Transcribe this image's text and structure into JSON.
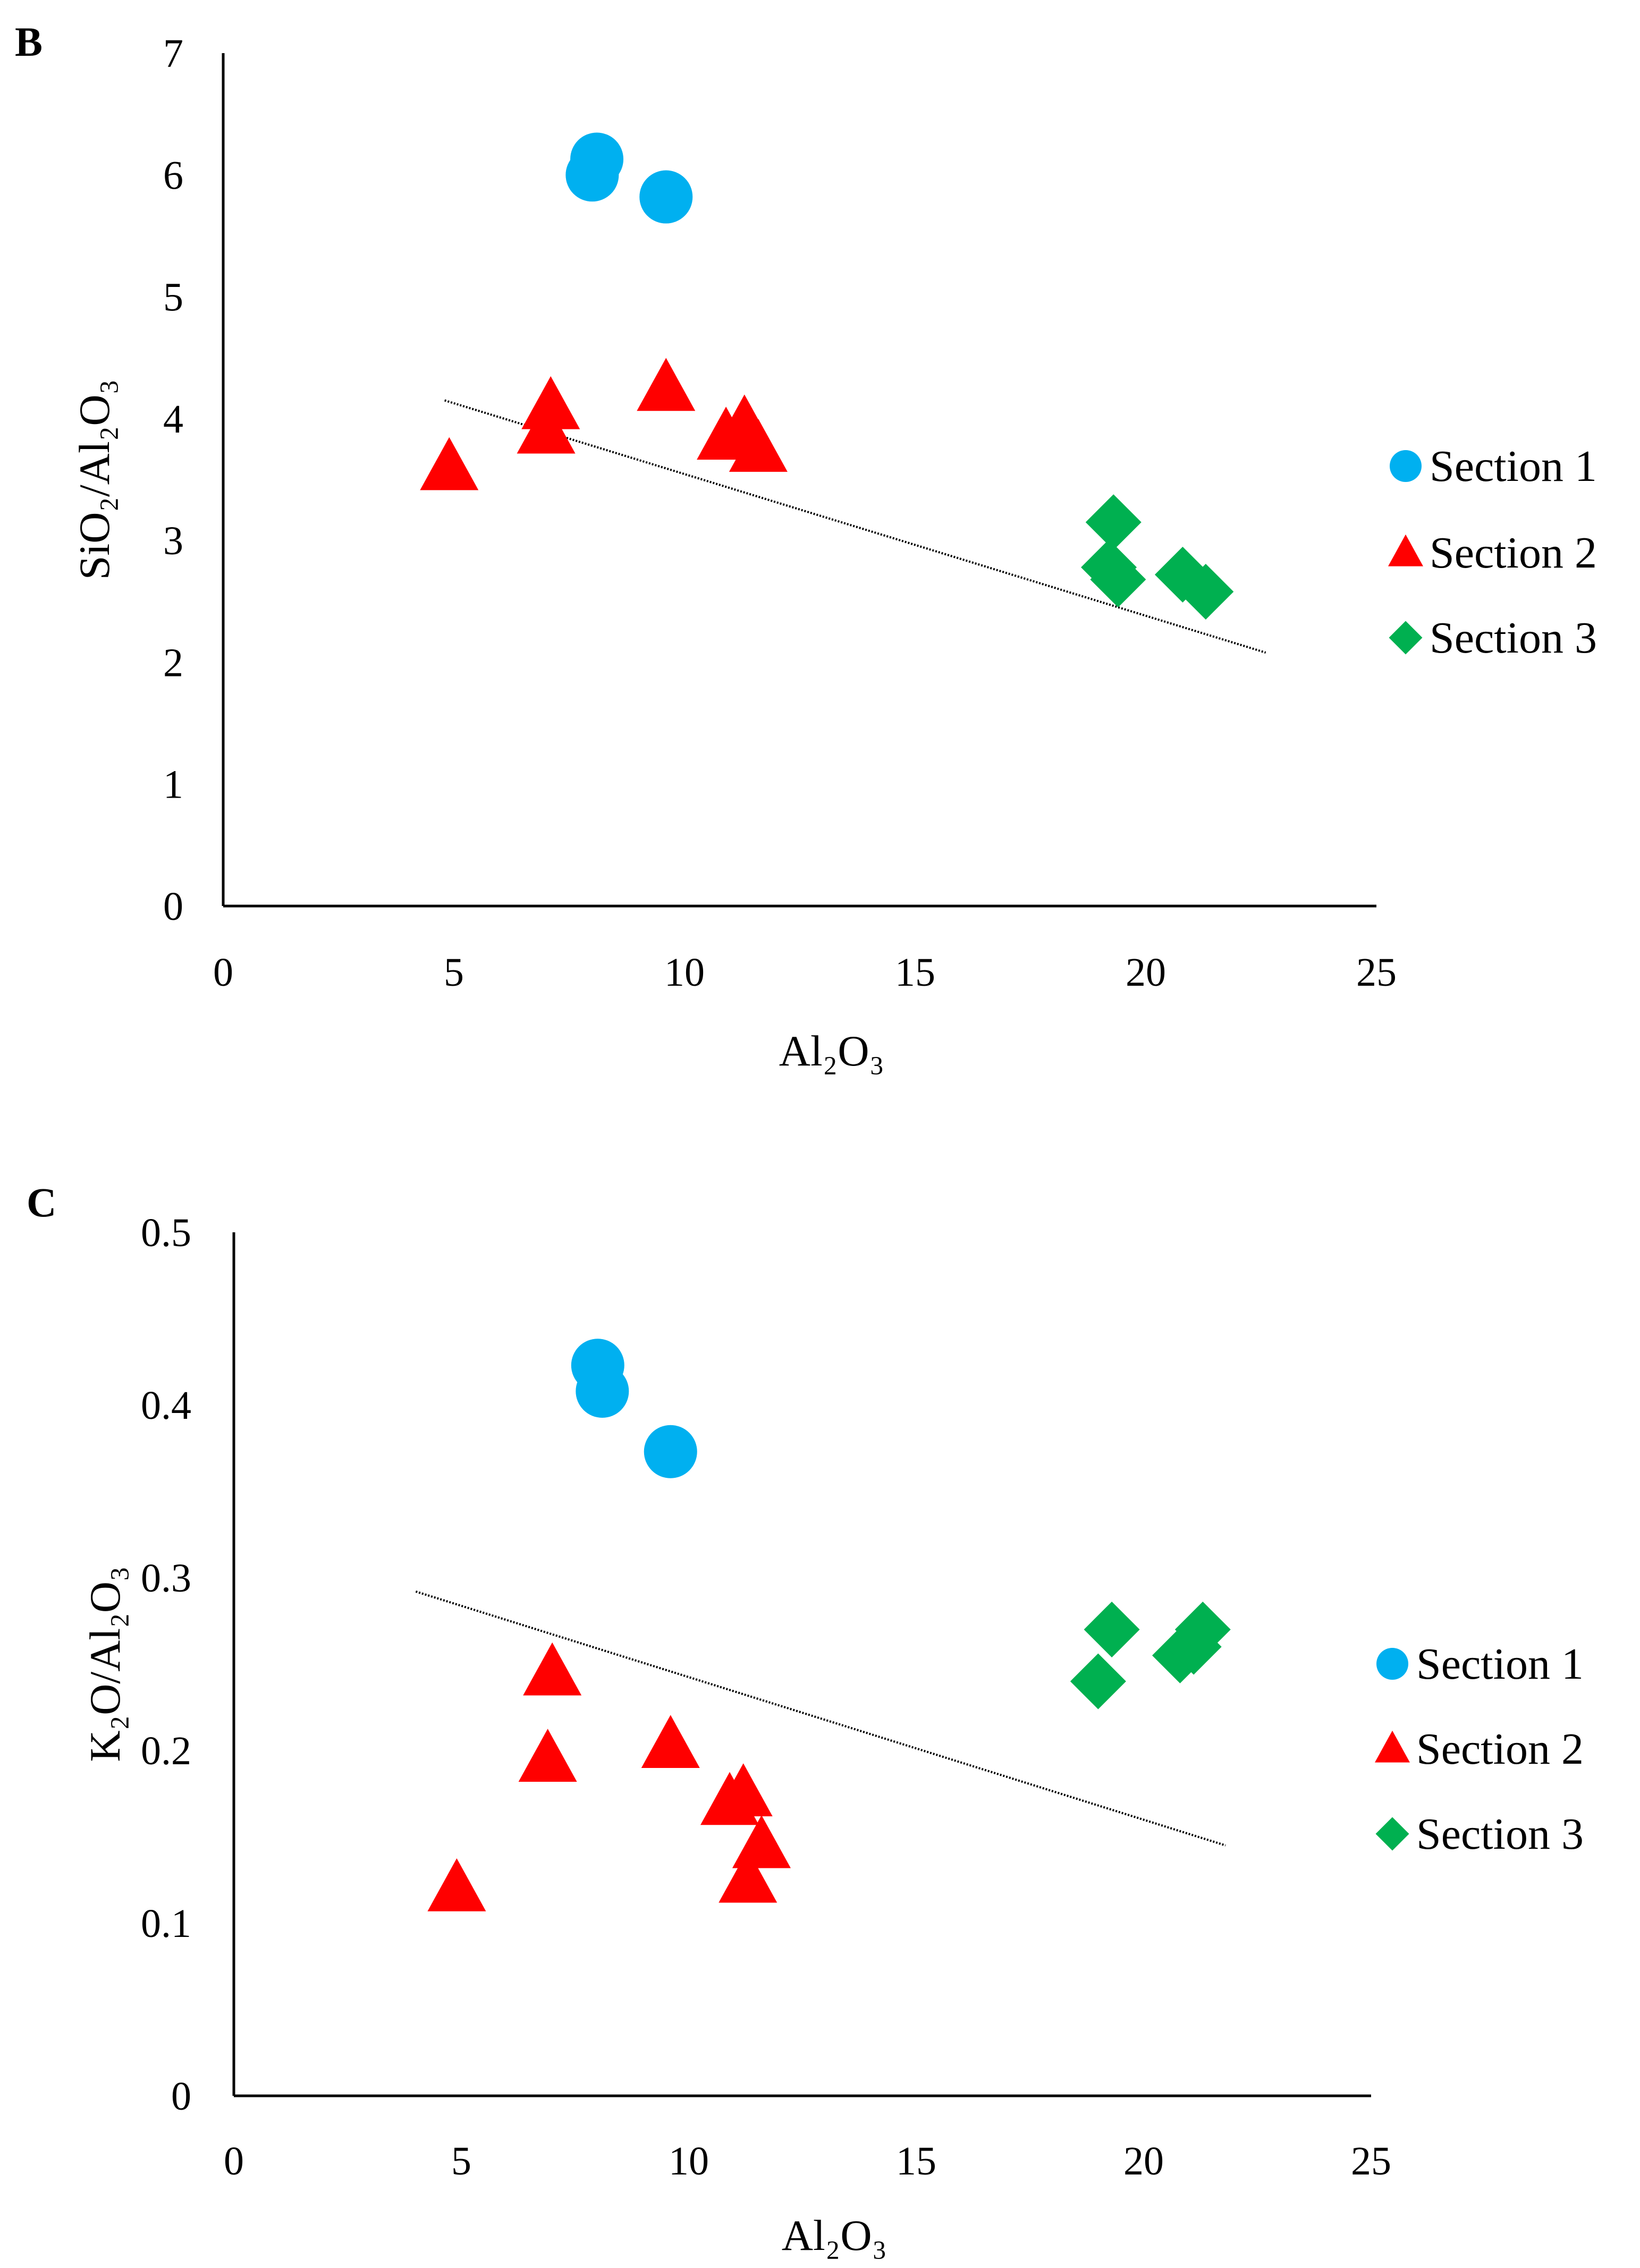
{
  "colors": {
    "section1": "#00b0f0",
    "section2": "#ff0000",
    "section3": "#00b050",
    "axis": "#000000",
    "trendline": "#000000"
  },
  "chart_data": [
    {
      "panel": "B",
      "type": "scatter",
      "xlabel": "Al₂O₃",
      "ylabel": "SiO₂/Al₂O₃",
      "xlim": [
        0,
        25
      ],
      "ylim": [
        0,
        7
      ],
      "xticks": [
        0,
        5,
        10,
        15,
        20,
        25
      ],
      "yticks": [
        0,
        1,
        2,
        3,
        4,
        5,
        6,
        7
      ],
      "grid": false,
      "legend_position": "right",
      "series": [
        {
          "name": "Section 1",
          "marker": "circle",
          "color": "#00b0f0",
          "points": [
            [
              8.0,
              6.0
            ],
            [
              8.1,
              6.13
            ],
            [
              9.6,
              5.82
            ]
          ]
        },
        {
          "name": "Section 2",
          "marker": "triangle",
          "color": "#ff0000",
          "points": [
            [
              4.9,
              3.6
            ],
            [
              7.0,
              3.9
            ],
            [
              7.1,
              4.1
            ],
            [
              9.6,
              4.25
            ],
            [
              10.9,
              3.85
            ],
            [
              11.3,
              3.95
            ],
            [
              11.6,
              3.75
            ]
          ]
        },
        {
          "name": "Section 3",
          "marker": "diamond",
          "color": "#00b050",
          "points": [
            [
              19.3,
              3.15
            ],
            [
              19.2,
              2.78
            ],
            [
              19.4,
              2.68
            ],
            [
              20.8,
              2.72
            ],
            [
              21.3,
              2.58
            ]
          ]
        }
      ],
      "trendline": {
        "x": [
          4.8,
          22.6
        ],
        "y": [
          4.15,
          2.08
        ],
        "style": "dotted"
      }
    },
    {
      "panel": "C",
      "type": "scatter",
      "xlabel": "Al₂O₃",
      "ylabel": "K₂O/Al₂O₃",
      "xlim": [
        0,
        25
      ],
      "ylim": [
        0,
        0.5
      ],
      "xticks": [
        0,
        5,
        10,
        15,
        20,
        25
      ],
      "yticks": [
        0,
        0.1,
        0.2,
        0.3,
        0.4,
        0.5
      ],
      "grid": false,
      "legend_position": "right",
      "series": [
        {
          "name": "Section 1",
          "marker": "circle",
          "color": "#00b0f0",
          "points": [
            [
              8.0,
              0.423
            ],
            [
              8.1,
              0.408
            ],
            [
              9.6,
              0.373
            ]
          ]
        },
        {
          "name": "Section 2",
          "marker": "triangle",
          "color": "#ff0000",
          "points": [
            [
              4.9,
              0.12
            ],
            [
              6.9,
              0.195
            ],
            [
              7.0,
              0.245
            ],
            [
              9.6,
              0.203
            ],
            [
              10.9,
              0.17
            ],
            [
              11.2,
              0.175
            ],
            [
              11.3,
              0.125
            ],
            [
              11.6,
              0.145
            ]
          ]
        },
        {
          "name": "Section 3",
          "marker": "diamond",
          "color": "#00b050",
          "points": [
            [
              19.0,
              0.24
            ],
            [
              19.3,
              0.27
            ],
            [
              20.8,
              0.255
            ],
            [
              21.1,
              0.26
            ],
            [
              21.3,
              0.27
            ]
          ]
        }
      ],
      "trendline": {
        "x": [
          4.0,
          21.8
        ],
        "y": [
          0.292,
          0.145
        ],
        "style": "dotted"
      }
    }
  ]
}
